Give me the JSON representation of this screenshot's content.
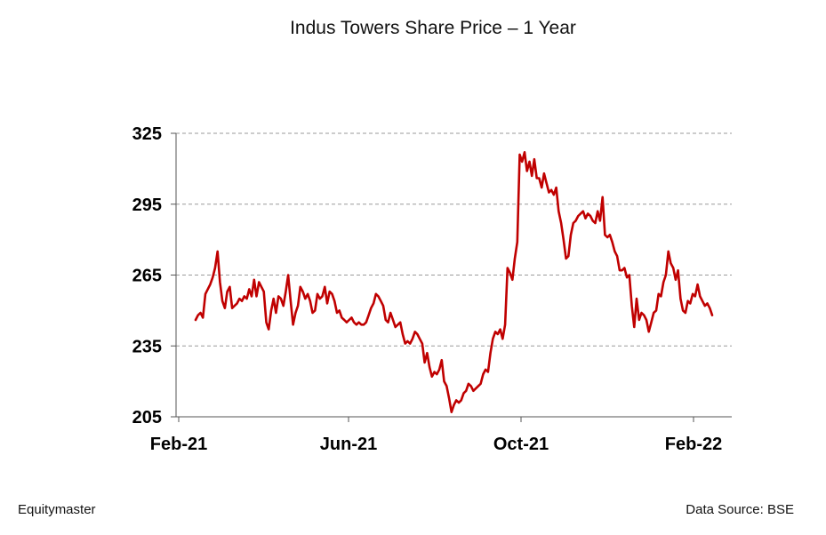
{
  "chart_data": {
    "type": "line",
    "title": "Indus Towers Share Price – 1 Year",
    "xlabel": "",
    "ylabel": "",
    "ylim": [
      205,
      325
    ],
    "yticks": [
      "325",
      "295",
      "265",
      "235",
      "205"
    ],
    "ytick_values": [
      325,
      295,
      265,
      235,
      205
    ],
    "xticks": [
      "Feb-21",
      "Jun-21",
      "Oct-21",
      "Feb-22"
    ],
    "grid": true,
    "series": [
      {
        "name": "Indus Towers",
        "color": "#c00000",
        "values": [
          246,
          248,
          249,
          247,
          257,
          259,
          261,
          264,
          268,
          275,
          262,
          254,
          251,
          258,
          260,
          251,
          252,
          253,
          255,
          254,
          256,
          255,
          259,
          256,
          263,
          256,
          262,
          260,
          258,
          245,
          242,
          250,
          255,
          249,
          256,
          255,
          252,
          258,
          265,
          254,
          244,
          249,
          252,
          260,
          258,
          255,
          257,
          254,
          249,
          250,
          257,
          255,
          256,
          260,
          253,
          258,
          257,
          254,
          249,
          250,
          247,
          246,
          245,
          246,
          247,
          245,
          244,
          245,
          244,
          244,
          245,
          248,
          251,
          253,
          257,
          256,
          254,
          252,
          246,
          245,
          249,
          246,
          243,
          244,
          245,
          240,
          236,
          237,
          236,
          238,
          241,
          240,
          238,
          236,
          228,
          232,
          226,
          222,
          224,
          223,
          225,
          229,
          220,
          218,
          213,
          207,
          210,
          212,
          211,
          212,
          215,
          216,
          219,
          218,
          216,
          217,
          218,
          219,
          223,
          225,
          224,
          232,
          238,
          241,
          240,
          242,
          238,
          244,
          268,
          266,
          263,
          272,
          279,
          316,
          313,
          317,
          309,
          313,
          307,
          314,
          306,
          306,
          302,
          308,
          304,
          300,
          301,
          299,
          302,
          292,
          287,
          280,
          272,
          273,
          282,
          287,
          288,
          290,
          291,
          292,
          289,
          291,
          290,
          288,
          287,
          292,
          288,
          298,
          282,
          281,
          282,
          279,
          275,
          273,
          267,
          267,
          268,
          264,
          265,
          252,
          243,
          255,
          246,
          249,
          248,
          246,
          241,
          245,
          249,
          250,
          257,
          256,
          262,
          265,
          275,
          270,
          268,
          263,
          267,
          255,
          250,
          249,
          254,
          253,
          257,
          256,
          261,
          256,
          254,
          252,
          253,
          251,
          248
        ]
      }
    ]
  },
  "footer": {
    "left": "Equitymaster",
    "right": "Data Source: BSE"
  }
}
